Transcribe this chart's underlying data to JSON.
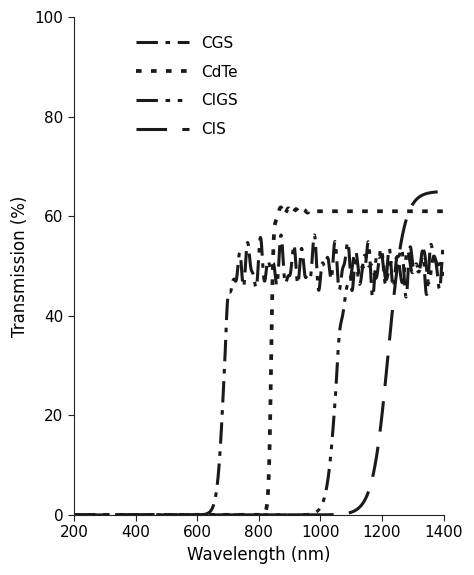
{
  "title": "",
  "xlabel": "Wavelength (nm)",
  "ylabel": "Transmission (%)",
  "xlim": [
    200,
    1400
  ],
  "ylim": [
    0,
    100
  ],
  "xticks": [
    200,
    400,
    600,
    800,
    1000,
    1200,
    1400
  ],
  "yticks": [
    0,
    20,
    40,
    60,
    80,
    100
  ],
  "legend_labels": [
    "CGS",
    "CdTe",
    "CIGS",
    "CIS"
  ],
  "line_color": "#1a1a1a",
  "background_color": "#ffffff",
  "cgs_rise": 685,
  "cgs_plateau": 50,
  "cdte_rise": 840,
  "cdte_plateau": 61,
  "cigs_rise": 1050,
  "cigs_plateau": 50,
  "cis_rise": 1220,
  "cis_plateau": 65
}
